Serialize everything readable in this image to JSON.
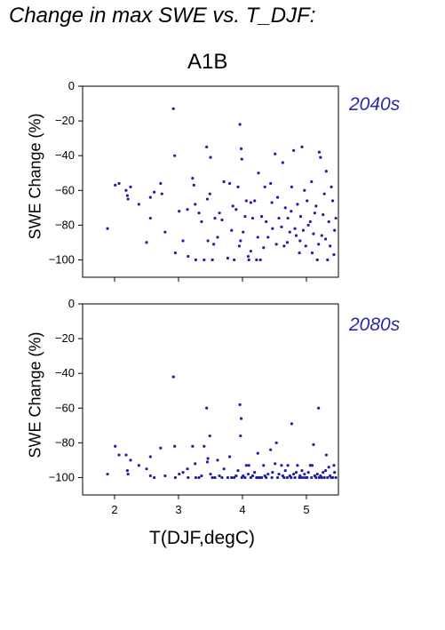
{
  "title": "Change in max SWE vs. T_DJF:",
  "scenario": "A1B",
  "xlabel": "T(DJF,degC)",
  "colors": {
    "points": "#1f1fa8",
    "period_label": "#2a2aa8",
    "axes": "#000000"
  },
  "chart_data": [
    {
      "type": "scatter",
      "period": "2040s",
      "ylabel": "SWE Change (%)",
      "xlim": [
        1.5,
        5.5
      ],
      "ylim": [
        -110,
        0
      ],
      "xticks": [
        2,
        3,
        4,
        5
      ],
      "yticks": [
        0,
        -20,
        -40,
        -60,
        -80,
        -100
      ],
      "grid": false,
      "points": [
        [
          1.89,
          -82
        ],
        [
          2.01,
          -57
        ],
        [
          2.07,
          -56
        ],
        [
          2.18,
          -60
        ],
        [
          2.2,
          -63
        ],
        [
          2.21,
          -65
        ],
        [
          2.25,
          -58
        ],
        [
          2.38,
          -68
        ],
        [
          2.5,
          -90
        ],
        [
          2.56,
          -64
        ],
        [
          2.56,
          -76
        ],
        [
          2.62,
          -61
        ],
        [
          2.72,
          -56
        ],
        [
          2.74,
          -62
        ],
        [
          2.79,
          -84
        ],
        [
          2.92,
          -13
        ],
        [
          2.94,
          -40
        ],
        [
          2.95,
          -96
        ],
        [
          3.01,
          -72
        ],
        [
          3.07,
          -89
        ],
        [
          3.14,
          -71
        ],
        [
          3.15,
          -98
        ],
        [
          3.22,
          -53
        ],
        [
          3.24,
          -57
        ],
        [
          3.26,
          -68
        ],
        [
          3.27,
          -100
        ],
        [
          3.32,
          -73
        ],
        [
          3.36,
          -78
        ],
        [
          3.4,
          -100
        ],
        [
          3.44,
          -35
        ],
        [
          3.45,
          -65
        ],
        [
          3.46,
          -89
        ],
        [
          3.49,
          -62
        ],
        [
          3.5,
          -41
        ],
        [
          3.53,
          -100
        ],
        [
          3.55,
          -91
        ],
        [
          3.57,
          -76
        ],
        [
          3.61,
          -87
        ],
        [
          3.64,
          -73
        ],
        [
          3.68,
          -77
        ],
        [
          3.71,
          -55
        ],
        [
          3.77,
          -99
        ],
        [
          3.8,
          -56
        ],
        [
          3.83,
          -83
        ],
        [
          3.85,
          -69
        ],
        [
          3.87,
          -100
        ],
        [
          3.9,
          -71
        ],
        [
          3.93,
          -58
        ],
        [
          3.95,
          -92
        ],
        [
          3.96,
          -22
        ],
        [
          3.97,
          -89
        ],
        [
          3.98,
          -36
        ],
        [
          3.99,
          -42
        ],
        [
          4.01,
          -84
        ],
        [
          4.04,
          -75
        ],
        [
          4.06,
          -66
        ],
        [
          4.09,
          -98
        ],
        [
          4.1,
          -100
        ],
        [
          4.13,
          -67
        ],
        [
          4.13,
          -95
        ],
        [
          4.16,
          -76
        ],
        [
          4.19,
          -66
        ],
        [
          4.22,
          -100
        ],
        [
          4.24,
          -87
        ],
        [
          4.25,
          -50
        ],
        [
          4.28,
          -100
        ],
        [
          4.3,
          -75
        ],
        [
          4.33,
          -93
        ],
        [
          4.35,
          -58
        ],
        [
          4.37,
          -78
        ],
        [
          4.4,
          -87
        ],
        [
          4.44,
          -56
        ],
        [
          4.46,
          -67
        ],
        [
          4.47,
          -82
        ],
        [
          4.51,
          -39
        ],
        [
          4.53,
          -91
        ],
        [
          4.55,
          -64
        ],
        [
          4.57,
          -76
        ],
        [
          4.61,
          -81
        ],
        [
          4.63,
          -44
        ],
        [
          4.65,
          -92
        ],
        [
          4.67,
          -70
        ],
        [
          4.7,
          -90
        ],
        [
          4.71,
          -76
        ],
        [
          4.74,
          -84
        ],
        [
          4.76,
          -72
        ],
        [
          4.77,
          -58
        ],
        [
          4.8,
          -37
        ],
        [
          4.82,
          -82
        ],
        [
          4.84,
          -86
        ],
        [
          4.86,
          -68
        ],
        [
          4.89,
          -96
        ],
        [
          4.9,
          -89
        ],
        [
          4.91,
          -75
        ],
        [
          4.93,
          -35
        ],
        [
          4.95,
          -83
        ],
        [
          4.97,
          -60
        ],
        [
          4.99,
          -92
        ],
        [
          5.01,
          -66
        ],
        [
          5.03,
          -80
        ],
        [
          5.06,
          -78
        ],
        [
          5.08,
          -55
        ],
        [
          5.09,
          -96
        ],
        [
          5.11,
          -85
        ],
        [
          5.13,
          -73
        ],
        [
          5.15,
          -69
        ],
        [
          5.17,
          -100
        ],
        [
          5.19,
          -91
        ],
        [
          5.2,
          -38
        ],
        [
          5.22,
          -41
        ],
        [
          5.24,
          -86
        ],
        [
          5.26,
          -74
        ],
        [
          5.28,
          -62
        ],
        [
          5.3,
          -88
        ],
        [
          5.31,
          -49
        ],
        [
          5.33,
          -100
        ],
        [
          5.35,
          -78
        ],
        [
          5.37,
          -92
        ],
        [
          5.39,
          -58
        ],
        [
          5.41,
          -66
        ],
        [
          5.43,
          -97
        ],
        [
          5.44,
          -83
        ],
        [
          5.46,
          -76
        ]
      ]
    },
    {
      "type": "scatter",
      "period": "2080s",
      "ylabel": "SWE Change (%)",
      "xlim": [
        1.5,
        5.5
      ],
      "ylim": [
        -110,
        0
      ],
      "xticks": [
        2,
        3,
        4,
        5
      ],
      "yticks": [
        0,
        -20,
        -40,
        -60,
        -80,
        -100
      ],
      "grid": false,
      "points": [
        [
          1.89,
          -98
        ],
        [
          2.01,
          -82
        ],
        [
          2.07,
          -87
        ],
        [
          2.18,
          -87
        ],
        [
          2.2,
          -96
        ],
        [
          2.21,
          -98
        ],
        [
          2.25,
          -90
        ],
        [
          2.38,
          -93
        ],
        [
          2.5,
          -95
        ],
        [
          2.56,
          -88
        ],
        [
          2.56,
          -99
        ],
        [
          2.62,
          -100
        ],
        [
          2.72,
          -83
        ],
        [
          2.79,
          -99
        ],
        [
          2.92,
          -42
        ],
        [
          2.94,
          -82
        ],
        [
          2.95,
          -100
        ],
        [
          3.01,
          -98
        ],
        [
          3.07,
          -97
        ],
        [
          3.14,
          -95
        ],
        [
          3.15,
          -100
        ],
        [
          3.22,
          -82
        ],
        [
          3.26,
          -92
        ],
        [
          3.27,
          -100
        ],
        [
          3.32,
          -100
        ],
        [
          3.36,
          -99
        ],
        [
          3.4,
          -82
        ],
        [
          3.44,
          -60
        ],
        [
          3.45,
          -91
        ],
        [
          3.46,
          -89
        ],
        [
          3.49,
          -76
        ],
        [
          3.5,
          -98
        ],
        [
          3.53,
          -100
        ],
        [
          3.57,
          -100
        ],
        [
          3.61,
          -90
        ],
        [
          3.64,
          -99
        ],
        [
          3.68,
          -100
        ],
        [
          3.71,
          -95
        ],
        [
          3.77,
          -100
        ],
        [
          3.8,
          -88
        ],
        [
          3.83,
          -100
        ],
        [
          3.87,
          -100
        ],
        [
          3.9,
          -99
        ],
        [
          3.93,
          -96
        ],
        [
          3.96,
          -58
        ],
        [
          3.97,
          -76
        ],
        [
          3.98,
          -66
        ],
        [
          3.99,
          -100
        ],
        [
          4.01,
          -99
        ],
        [
          4.04,
          -100
        ],
        [
          4.06,
          -93
        ],
        [
          4.09,
          -98
        ],
        [
          4.1,
          -93
        ],
        [
          4.13,
          -100
        ],
        [
          4.16,
          -99
        ],
        [
          4.19,
          -97
        ],
        [
          4.22,
          -100
        ],
        [
          4.24,
          -86
        ],
        [
          4.25,
          -100
        ],
        [
          4.28,
          -100
        ],
        [
          4.3,
          -100
        ],
        [
          4.33,
          -93
        ],
        [
          4.35,
          -99
        ],
        [
          4.37,
          -100
        ],
        [
          4.4,
          -98
        ],
        [
          4.44,
          -84
        ],
        [
          4.46,
          -100
        ],
        [
          4.47,
          -97
        ],
        [
          4.51,
          -92
        ],
        [
          4.53,
          -80
        ],
        [
          4.55,
          -100
        ],
        [
          4.57,
          -98
        ],
        [
          4.61,
          -93
        ],
        [
          4.63,
          -99
        ],
        [
          4.65,
          -100
        ],
        [
          4.67,
          -96
        ],
        [
          4.7,
          -100
        ],
        [
          4.71,
          -93
        ],
        [
          4.74,
          -99
        ],
        [
          4.76,
          -100
        ],
        [
          4.77,
          -69
        ],
        [
          4.8,
          -98
        ],
        [
          4.82,
          -100
        ],
        [
          4.84,
          -97
        ],
        [
          4.86,
          -93
        ],
        [
          4.89,
          -100
        ],
        [
          4.9,
          -99
        ],
        [
          4.91,
          -100
        ],
        [
          4.93,
          -96
        ],
        [
          4.95,
          -100
        ],
        [
          4.97,
          -98
        ],
        [
          4.99,
          -100
        ],
        [
          5.01,
          -100
        ],
        [
          5.03,
          -97
        ],
        [
          5.06,
          -93
        ],
        [
          5.08,
          -100
        ],
        [
          5.09,
          -93
        ],
        [
          5.11,
          -81
        ],
        [
          5.13,
          -99
        ],
        [
          5.15,
          -100
        ],
        [
          5.17,
          -98
        ],
        [
          5.19,
          -60
        ],
        [
          5.2,
          -100
        ],
        [
          5.22,
          -99
        ],
        [
          5.24,
          -100
        ],
        [
          5.26,
          -97
        ],
        [
          5.28,
          -100
        ],
        [
          5.3,
          -96
        ],
        [
          5.31,
          -87
        ],
        [
          5.33,
          -100
        ],
        [
          5.35,
          -94
        ],
        [
          5.37,
          -99
        ],
        [
          5.39,
          -100
        ],
        [
          5.41,
          -100
        ],
        [
          5.43,
          -93
        ],
        [
          5.44,
          -97
        ],
        [
          5.46,
          -100
        ]
      ]
    }
  ]
}
